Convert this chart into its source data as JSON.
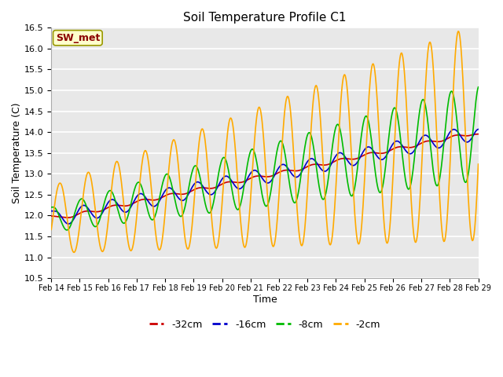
{
  "title": "Soil Temperature Profile C1",
  "xlabel": "Time",
  "ylabel": "Soil Temperature (C)",
  "ylim": [
    10.5,
    16.5
  ],
  "fig_bg_color": "#ffffff",
  "plot_bg_color": "#e8e8e8",
  "grid_color": "white",
  "series": {
    "-32cm": {
      "color": "#cc0000",
      "lw": 1.2
    },
    "-16cm": {
      "color": "#0000cc",
      "lw": 1.2
    },
    "-8cm": {
      "color": "#00bb00",
      "lw": 1.2
    },
    "-2cm": {
      "color": "#ffaa00",
      "lw": 1.2
    }
  },
  "sw_met_text": "SW_met",
  "sw_met_color": "#8b0000",
  "sw_met_bg": "#ffffcc",
  "date_labels": [
    "Feb 14",
    "Feb 15",
    "Feb 16",
    "Feb 17",
    "Feb 18",
    "Feb 19",
    "Feb 20",
    "Feb 21",
    "Feb 22",
    "Feb 23",
    "Feb 24",
    "Feb 25",
    "Feb 26",
    "Feb 27",
    "Feb 28",
    "Feb 29"
  ],
  "n_points": 720,
  "yticks": [
    10.5,
    11.0,
    11.5,
    12.0,
    12.5,
    13.0,
    13.5,
    14.0,
    14.5,
    15.0,
    15.5,
    16.0,
    16.5
  ]
}
